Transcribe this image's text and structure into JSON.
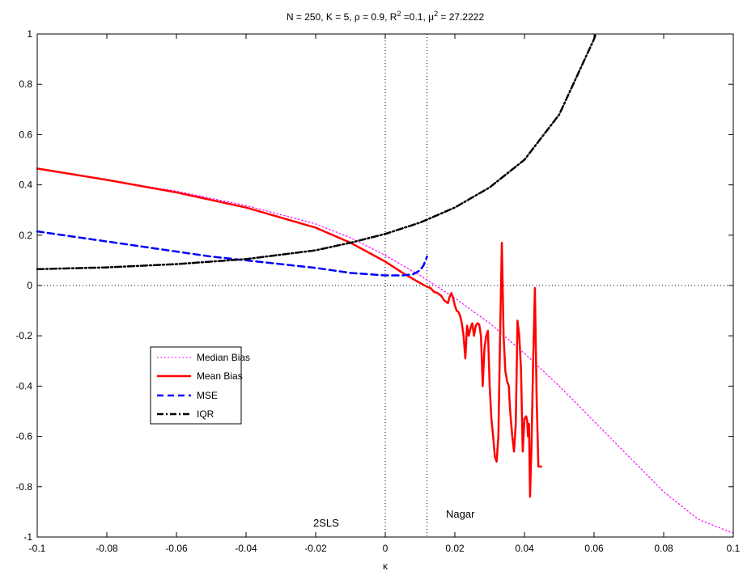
{
  "chart_data": {
    "type": "line",
    "title": {
      "prefix": "N = 250, K = 5, ρ = 0.9, R",
      "sup1": "2",
      "middle": " =0.1, μ",
      "sup2": "2",
      "suffix": " = 27.2222"
    },
    "xlabel": "κ",
    "ylabel": "",
    "xlim": [
      -0.1,
      0.1
    ],
    "ylim": [
      -1,
      1
    ],
    "xticks": [
      -0.1,
      -0.08,
      -0.06,
      -0.04,
      -0.02,
      0,
      0.02,
      0.04,
      0.06,
      0.08,
      0.1
    ],
    "xtick_labels": [
      "-0.1",
      "-0.08",
      "-0.06",
      "-0.04",
      "-0.02",
      "0",
      "0.02",
      "0.04",
      "0.06",
      "0.08",
      "0.1"
    ],
    "yticks": [
      -1,
      -0.8,
      -0.6,
      -0.4,
      -0.2,
      0,
      0.2,
      0.4,
      0.6,
      0.8,
      1
    ],
    "ytick_labels": [
      "-1",
      "-0.8",
      "-0.6",
      "-0.4",
      "-0.2",
      "0",
      "0.2",
      "0.4",
      "0.6",
      "0.8",
      "1"
    ],
    "grid": false,
    "legend_placement": "middle-left",
    "reference_lines": {
      "horizontal_y": 0,
      "vertical_x": [
        0,
        0.012
      ]
    },
    "annotations": [
      {
        "text": "2SLS",
        "x": -0.022,
        "y": -0.92
      },
      {
        "text": "Nagar",
        "x": 0.017,
        "y": -0.9
      }
    ],
    "series": [
      {
        "name": "Median Bias",
        "color": "#ff00ff",
        "style": "dotted",
        "x": [
          -0.1,
          -0.08,
          -0.06,
          -0.04,
          -0.02,
          -0.01,
          0,
          0.01,
          0.02,
          0.03,
          0.04,
          0.05,
          0.06,
          0.07,
          0.08,
          0.09,
          0.1
        ],
        "y": [
          0.465,
          0.42,
          0.375,
          0.318,
          0.245,
          0.19,
          0.12,
          0.04,
          -0.05,
          -0.15,
          -0.27,
          -0.4,
          -0.54,
          -0.68,
          -0.82,
          -0.93,
          -0.985
        ]
      },
      {
        "name": "Mean Bias",
        "color": "#ff0000",
        "style": "solid",
        "x": [
          -0.1,
          -0.08,
          -0.06,
          -0.04,
          -0.02,
          -0.01,
          0,
          0.005,
          0.01,
          0.012,
          0.013,
          0.014,
          0.015,
          0.016,
          0.017,
          0.018,
          0.0185,
          0.019,
          0.0195,
          0.02,
          0.0205,
          0.021,
          0.0215,
          0.022,
          0.0225,
          0.023,
          0.0232,
          0.0235,
          0.024,
          0.0245,
          0.025,
          0.0255,
          0.026,
          0.0265,
          0.027,
          0.0275,
          0.028,
          0.0285,
          0.029,
          0.0295,
          0.03,
          0.0305,
          0.031,
          0.0315,
          0.032,
          0.0325,
          0.033,
          0.0335,
          0.034,
          0.0345,
          0.035,
          0.0355,
          0.0358,
          0.036,
          0.0365,
          0.037,
          0.0375,
          0.038,
          0.0385,
          0.039,
          0.0395,
          0.04,
          0.0405,
          0.0408,
          0.041,
          0.0413,
          0.0416,
          0.042,
          0.0425,
          0.043,
          0.0435,
          0.044,
          0.0442,
          0.0445,
          0.0448
        ],
        "y": [
          0.465,
          0.42,
          0.37,
          0.31,
          0.23,
          0.17,
          0.095,
          0.05,
          0.01,
          -0.005,
          -0.01,
          -0.025,
          -0.03,
          -0.04,
          -0.06,
          -0.07,
          -0.045,
          -0.03,
          -0.05,
          -0.08,
          -0.1,
          -0.105,
          -0.12,
          -0.15,
          -0.2,
          -0.29,
          -0.24,
          -0.16,
          -0.2,
          -0.17,
          -0.15,
          -0.2,
          -0.16,
          -0.15,
          -0.155,
          -0.2,
          -0.4,
          -0.25,
          -0.2,
          -0.18,
          -0.4,
          -0.53,
          -0.6,
          -0.68,
          -0.7,
          -0.6,
          -0.2,
          0.17,
          -0.2,
          -0.34,
          -0.38,
          -0.4,
          -0.48,
          -0.52,
          -0.6,
          -0.66,
          -0.55,
          -0.14,
          -0.2,
          -0.33,
          -0.66,
          -0.53,
          -0.52,
          -0.54,
          -0.6,
          -0.55,
          -0.84,
          -0.65,
          -0.3,
          -0.01,
          -0.45,
          -0.72,
          -0.72,
          -0.72,
          -0.72
        ],
        "y_note": ""
      },
      {
        "name": "MSE",
        "color": "#0000ff",
        "style": "dashed",
        "x": [
          -0.1,
          -0.09,
          -0.08,
          -0.07,
          -0.06,
          -0.05,
          -0.04,
          -0.03,
          -0.02,
          -0.01,
          0,
          0.005,
          0.008,
          0.01,
          0.011,
          0.012
        ],
        "y": [
          0.215,
          0.195,
          0.175,
          0.155,
          0.135,
          0.115,
          0.1,
          0.085,
          0.07,
          0.05,
          0.04,
          0.04,
          0.045,
          0.06,
          0.08,
          0.115
        ]
      },
      {
        "name": "IQR",
        "color": "#000000",
        "style": "dashdot",
        "x": [
          -0.1,
          -0.08,
          -0.06,
          -0.04,
          -0.02,
          -0.01,
          0,
          0.01,
          0.02,
          0.03,
          0.04,
          0.05,
          0.06,
          0.0605
        ],
        "y": [
          0.065,
          0.072,
          0.085,
          0.105,
          0.14,
          0.17,
          0.205,
          0.25,
          0.31,
          0.39,
          0.5,
          0.68,
          0.98,
          1.0
        ]
      }
    ]
  }
}
